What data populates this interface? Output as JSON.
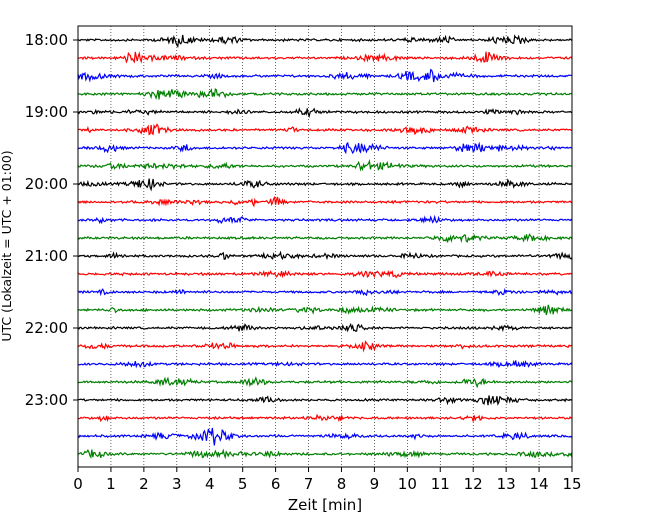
{
  "chart_data": {
    "type": "line",
    "title": "",
    "xlabel": "Zeit  [min]",
    "ylabel": "UTC (Lokalzeit = UTC + 01:00)",
    "xlim": [
      0,
      15
    ],
    "x_ticks": [
      "0",
      "1",
      "2",
      "3",
      "4",
      "5",
      "6",
      "7",
      "8",
      "9",
      "10",
      "11",
      "12",
      "13",
      "14",
      "15"
    ],
    "y_ticks": [
      "18:00",
      "19:00",
      "20:00",
      "21:00",
      "22:00",
      "23:00"
    ],
    "grid": "vertical dotted",
    "trace_colors": [
      "#000000",
      "#ff0000",
      "#0000ff",
      "#008000"
    ],
    "trace_start_times": [
      "18:00",
      "18:15",
      "18:30",
      "18:45",
      "19:00",
      "19:15",
      "19:30",
      "19:45",
      "20:00",
      "20:15",
      "20:30",
      "20:45",
      "21:00",
      "21:15",
      "21:30",
      "21:45",
      "22:00",
      "22:15",
      "22:30",
      "22:45",
      "23:00",
      "23:15",
      "23:30",
      "23:45"
    ],
    "trace_minutes": 15
  }
}
